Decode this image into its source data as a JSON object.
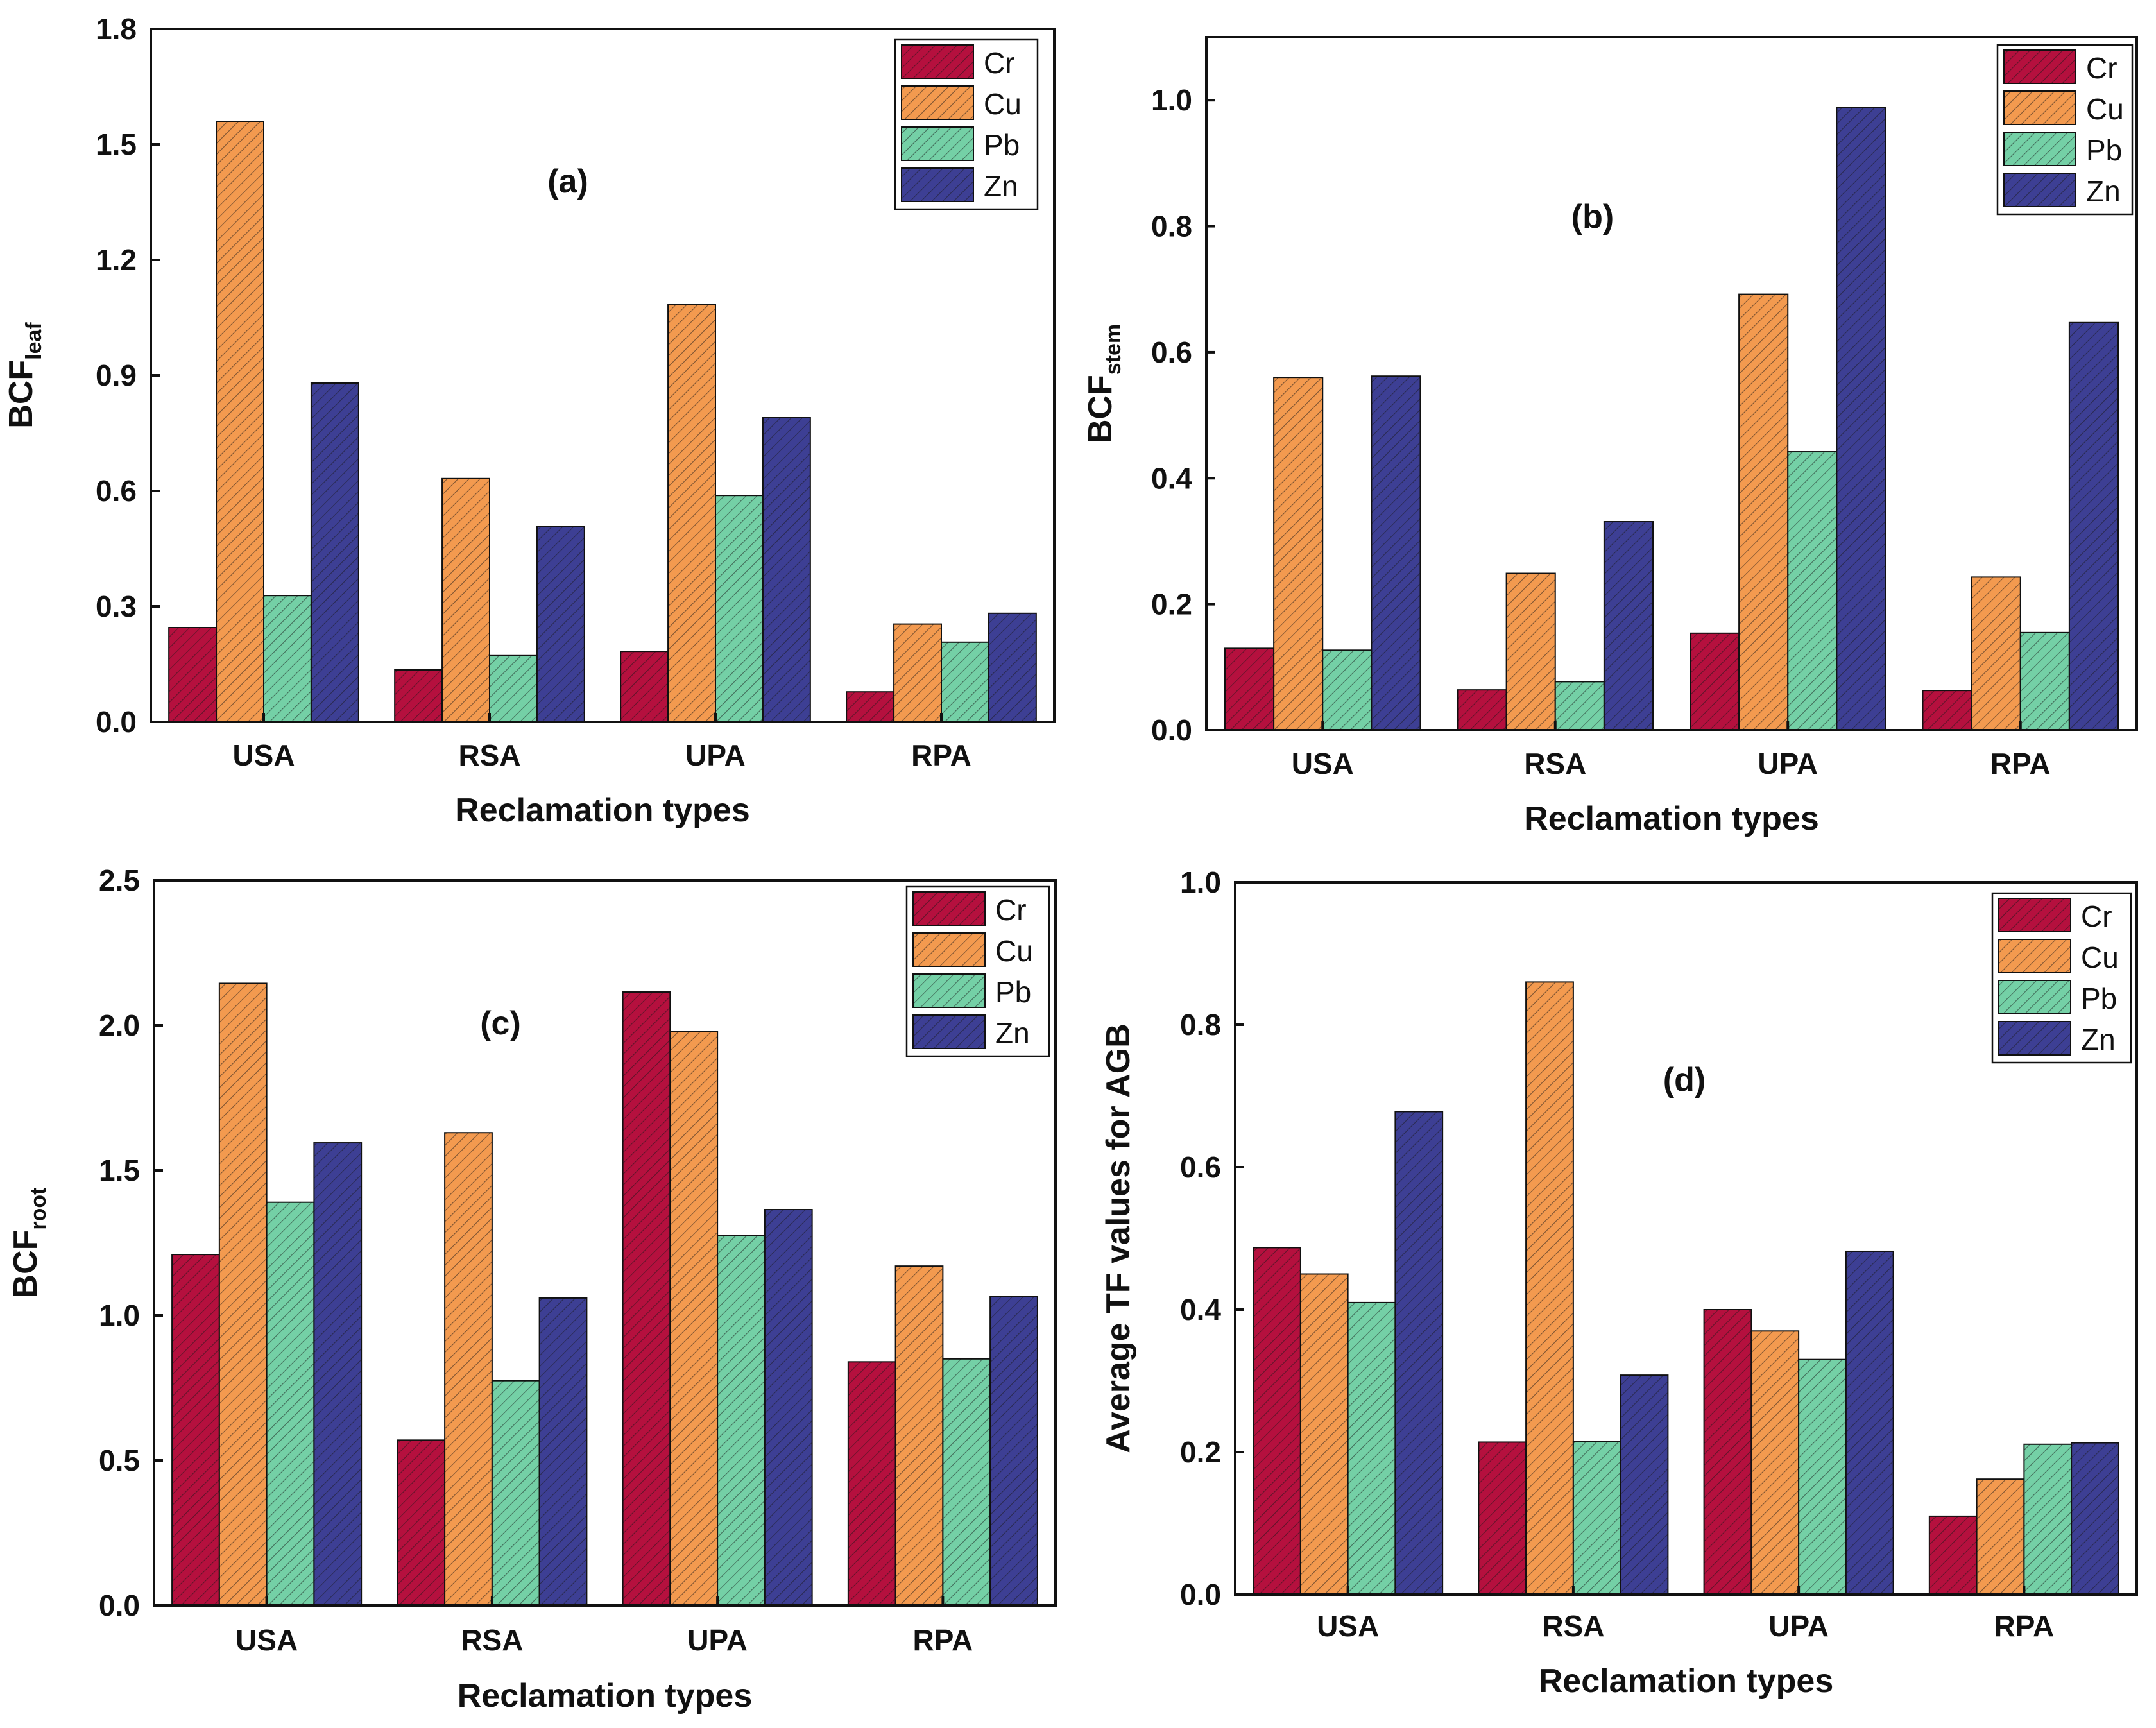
{
  "colors": {
    "Cr": "#b5103e",
    "Cu": "#f39a4f",
    "Pb": "#74d0a6",
    "Zn": "#3d3f94"
  },
  "chart_data": [
    {
      "type": "bar",
      "panel": "(a)",
      "categories": [
        "USA",
        "RSA",
        "UPA",
        "RPA"
      ],
      "series": [
        {
          "name": "Cr",
          "values": [
            0.245,
            0.135,
            0.183,
            0.078
          ]
        },
        {
          "name": "Cu",
          "values": [
            1.56,
            0.632,
            1.085,
            0.254
          ]
        },
        {
          "name": "Pb",
          "values": [
            0.328,
            0.172,
            0.588,
            0.207
          ]
        },
        {
          "name": "Zn",
          "values": [
            0.88,
            0.507,
            0.79,
            0.282
          ]
        }
      ],
      "xlabel": "Reclamation types",
      "ylabel_main": "BCF",
      "ylabel_sub": "leaf",
      "ylim": [
        0,
        1.8
      ],
      "yticks": [
        "0.0",
        "0.3",
        "0.6",
        "0.9",
        "1.2",
        "1.5",
        "1.8"
      ],
      "legend": [
        "Cr",
        "Cu",
        "Pb",
        "Zn"
      ],
      "legend_position": "top-right"
    },
    {
      "type": "bar",
      "panel": "(b)",
      "categories": [
        "USA",
        "RSA",
        "UPA",
        "RPA"
      ],
      "series": [
        {
          "name": "Cr",
          "values": [
            0.13,
            0.064,
            0.154,
            0.063
          ]
        },
        {
          "name": "Cu",
          "values": [
            0.56,
            0.249,
            0.692,
            0.243
          ]
        },
        {
          "name": "Pb",
          "values": [
            0.127,
            0.077,
            0.442,
            0.155
          ]
        },
        {
          "name": "Zn",
          "values": [
            0.562,
            0.331,
            0.988,
            0.647
          ]
        }
      ],
      "xlabel": "Reclamation types",
      "ylabel_main": "BCF",
      "ylabel_sub": "stem",
      "ylim": [
        0,
        1.1
      ],
      "yticks": [
        "0.0",
        "0.2",
        "0.4",
        "0.6",
        "0.8",
        "1.0"
      ],
      "legend": [
        "Cr",
        "Cu",
        "Pb",
        "Zn"
      ],
      "legend_position": "top-right"
    },
    {
      "type": "bar",
      "panel": "(c)",
      "categories": [
        "USA",
        "RSA",
        "UPA",
        "RPA"
      ],
      "series": [
        {
          "name": "Cr",
          "values": [
            1.21,
            0.57,
            2.115,
            0.84
          ]
        },
        {
          "name": "Cu",
          "values": [
            2.145,
            1.63,
            1.98,
            1.17
          ]
        },
        {
          "name": "Pb",
          "values": [
            1.39,
            0.775,
            1.275,
            0.85
          ]
        },
        {
          "name": "Zn",
          "values": [
            1.595,
            1.06,
            1.365,
            1.065
          ]
        }
      ],
      "xlabel": "Reclamation types",
      "ylabel_main": "BCF",
      "ylabel_sub": "root",
      "ylim": [
        0,
        2.5
      ],
      "yticks": [
        "0.0",
        "0.5",
        "1.0",
        "1.5",
        "2.0",
        "2.5"
      ],
      "legend": [
        "Cr",
        "Cu",
        "Pb",
        "Zn"
      ],
      "legend_position": "top-right"
    },
    {
      "type": "bar",
      "panel": "(d)",
      "categories": [
        "USA",
        "RSA",
        "UPA",
        "RPA"
      ],
      "series": [
        {
          "name": "Cr",
          "values": [
            0.487,
            0.214,
            0.4,
            0.11
          ]
        },
        {
          "name": "Cu",
          "values": [
            0.45,
            0.86,
            0.37,
            0.162
          ]
        },
        {
          "name": "Pb",
          "values": [
            0.41,
            0.215,
            0.33,
            0.211
          ]
        },
        {
          "name": "Zn",
          "values": [
            0.678,
            0.308,
            0.482,
            0.213
          ]
        }
      ],
      "xlabel": "Reclamation types",
      "ylabel_main": "Average TF values for AGB",
      "ylabel_sub": "",
      "ylim": [
        0,
        1.0
      ],
      "yticks": [
        "0.0",
        "0.2",
        "0.4",
        "0.6",
        "0.8",
        "1.0"
      ],
      "legend": [
        "Cr",
        "Cu",
        "Pb",
        "Zn"
      ],
      "legend_position": "top-right"
    }
  ]
}
